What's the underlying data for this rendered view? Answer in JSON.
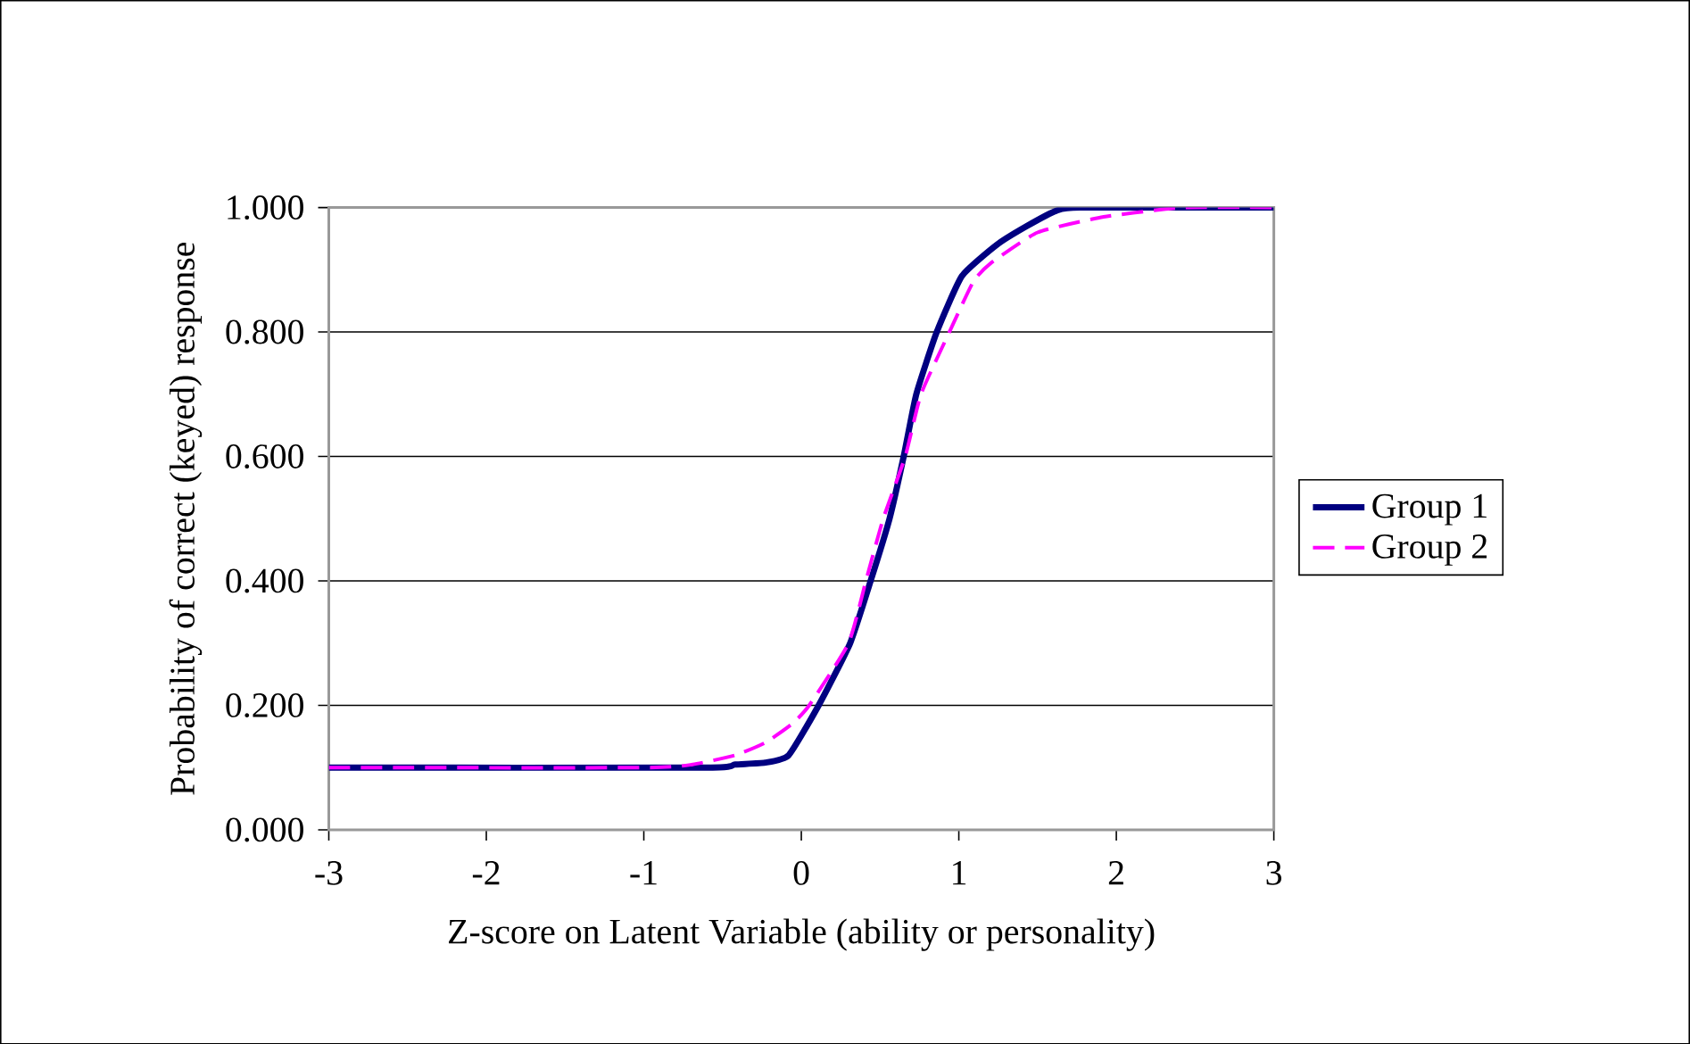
{
  "chart_data": {
    "type": "line",
    "xlabel": "Z-score on Latent Variable (ability or personality)",
    "ylabel": "Probability of correct (keyed) response",
    "xlim": [
      -3,
      3
    ],
    "ylim": [
      0,
      1
    ],
    "xticks": [
      -3,
      -2,
      -1,
      0,
      1,
      2,
      3
    ],
    "yticks": [
      {
        "value": 0,
        "label": "0.000"
      },
      {
        "value": 0.2,
        "label": "0.200"
      },
      {
        "value": 0.4,
        "label": "0.400"
      },
      {
        "value": 0.6,
        "label": "0.600"
      },
      {
        "value": 0.8,
        "label": "0.800"
      },
      {
        "value": 1,
        "label": "1.000"
      }
    ],
    "grid": "y",
    "legend": "right",
    "series": [
      {
        "name": "Group 1",
        "color": "#000080",
        "line_style": "solid",
        "x": [
          -3,
          -0.61,
          -0.42,
          -0.23,
          -0.08,
          0.11,
          0.31,
          0.44,
          0.56,
          0.65,
          0.73,
          0.86,
          1.02,
          1.24,
          1.43,
          1.62,
          1.77,
          3
        ],
        "values": [
          0.1,
          0.1,
          0.105,
          0.108,
          0.12,
          0.2,
          0.3,
          0.4,
          0.5,
          0.6,
          0.7,
          0.8,
          0.89,
          0.94,
          0.97,
          0.995,
          1.0,
          1.0
        ]
      },
      {
        "name": "Group 2",
        "color": "#ff00ff",
        "line_style": "dashed",
        "x": [
          -3,
          -0.99,
          -0.69,
          -0.42,
          -0.23,
          -0.06,
          0.05,
          0.3,
          0.41,
          0.52,
          0.66,
          0.76,
          0.94,
          1.09,
          1.2,
          1.5,
          1.92,
          2.42,
          3
        ],
        "values": [
          0.1,
          0.1,
          0.105,
          0.12,
          0.14,
          0.17,
          0.2,
          0.3,
          0.4,
          0.5,
          0.6,
          0.7,
          0.8,
          0.88,
          0.91,
          0.96,
          0.985,
          1.0,
          1.0
        ]
      }
    ]
  }
}
